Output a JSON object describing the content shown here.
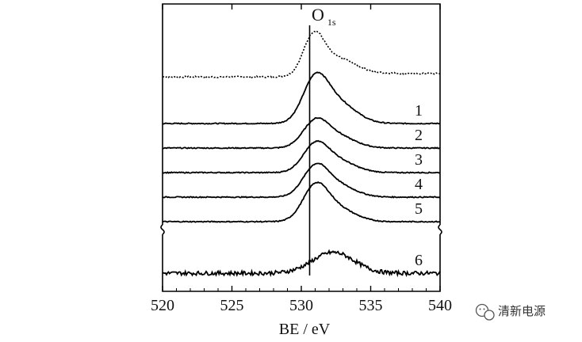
{
  "chart_data": {
    "type": "line",
    "title": "",
    "peak_label": {
      "main": "O",
      "sub": "1s"
    },
    "xlabel": "BE / eV",
    "ylabel": "",
    "xlim": [
      520,
      540
    ],
    "x_ticks": [
      520,
      525,
      530,
      535,
      540
    ],
    "tick_labels": [
      "520",
      "525",
      "530",
      "535",
      "540"
    ],
    "reference_line_x": 530.6,
    "axis_break": true,
    "series": [
      {
        "name": "",
        "style": "dotted",
        "baseline": 5.9,
        "noise": 0.03,
        "peaks": [
          {
            "center": 530.9,
            "height": 1.55,
            "sigma": 0.75
          },
          {
            "center": 532.5,
            "height": 0.65,
            "sigma": 1.3
          }
        ],
        "shoulder": 0.15
      },
      {
        "name": "1",
        "style": "solid",
        "baseline": 4.0,
        "noise": 0.02,
        "peaks": [
          {
            "center": 531.0,
            "height": 1.65,
            "sigma": 0.9
          },
          {
            "center": 532.6,
            "height": 0.85,
            "sigma": 1.3
          }
        ],
        "shoulder": 0.0
      },
      {
        "name": "2",
        "style": "solid",
        "baseline": 3.0,
        "noise": 0.02,
        "peaks": [
          {
            "center": 531.0,
            "height": 0.95,
            "sigma": 0.9
          },
          {
            "center": 532.5,
            "height": 0.5,
            "sigma": 1.3
          }
        ],
        "shoulder": 0.0
      },
      {
        "name": "3",
        "style": "solid",
        "baseline": 2.0,
        "noise": 0.02,
        "peaks": [
          {
            "center": 531.0,
            "height": 1.0,
            "sigma": 0.9
          },
          {
            "center": 532.5,
            "height": 0.5,
            "sigma": 1.3
          }
        ],
        "shoulder": 0.0
      },
      {
        "name": "4",
        "style": "solid",
        "baseline": 1.0,
        "noise": 0.02,
        "peaks": [
          {
            "center": 531.0,
            "height": 1.1,
            "sigma": 0.9
          },
          {
            "center": 532.5,
            "height": 0.5,
            "sigma": 1.3
          }
        ],
        "shoulder": 0.0
      },
      {
        "name": "5",
        "style": "solid",
        "baseline": 0.0,
        "noise": 0.02,
        "peaks": [
          {
            "center": 531.0,
            "height": 1.3,
            "sigma": 0.9
          },
          {
            "center": 532.5,
            "height": 0.55,
            "sigma": 1.3
          }
        ],
        "shoulder": 0.0
      },
      {
        "name": "6",
        "style": "solid",
        "baseline": -2.1,
        "noise": 0.08,
        "peaks": [
          {
            "center": 532.3,
            "height": 0.85,
            "sigma": 1.5
          }
        ],
        "shoulder": 0.0
      }
    ],
    "grid": false,
    "legend": "none"
  },
  "watermark": {
    "icon": "wechat-icon",
    "text": "清新电源"
  }
}
